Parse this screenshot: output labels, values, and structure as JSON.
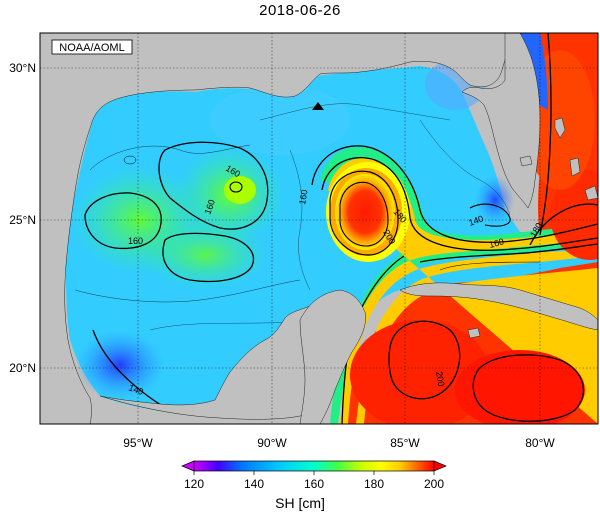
{
  "title": "2018-06-26",
  "credit": "NOAA/AOML",
  "colorbar": {
    "label": "SH [cm]",
    "ticks": [
      "120",
      "140",
      "160",
      "180",
      "200"
    ],
    "stops": [
      "#cc00ff",
      "#4400ff",
      "#0077ff",
      "#00c8ff",
      "#00ffcc",
      "#44ff44",
      "#ccff00",
      "#ffff00",
      "#ffcc00",
      "#ff6600",
      "#ff0000"
    ]
  },
  "axes": {
    "lat_labels": [
      "30°N",
      "25°N",
      "20°N"
    ],
    "lon_labels": [
      "95°W",
      "90°W",
      "85°W",
      "80°W"
    ]
  },
  "contour_labels": [
    "160",
    "160",
    "160",
    "160",
    "180",
    "200",
    "140",
    "160",
    "180",
    "200",
    "140"
  ],
  "colors": {
    "land": "#c0c0c0",
    "ocean_border": "#000000"
  },
  "markers": {
    "buoy": "triangle-marker"
  }
}
